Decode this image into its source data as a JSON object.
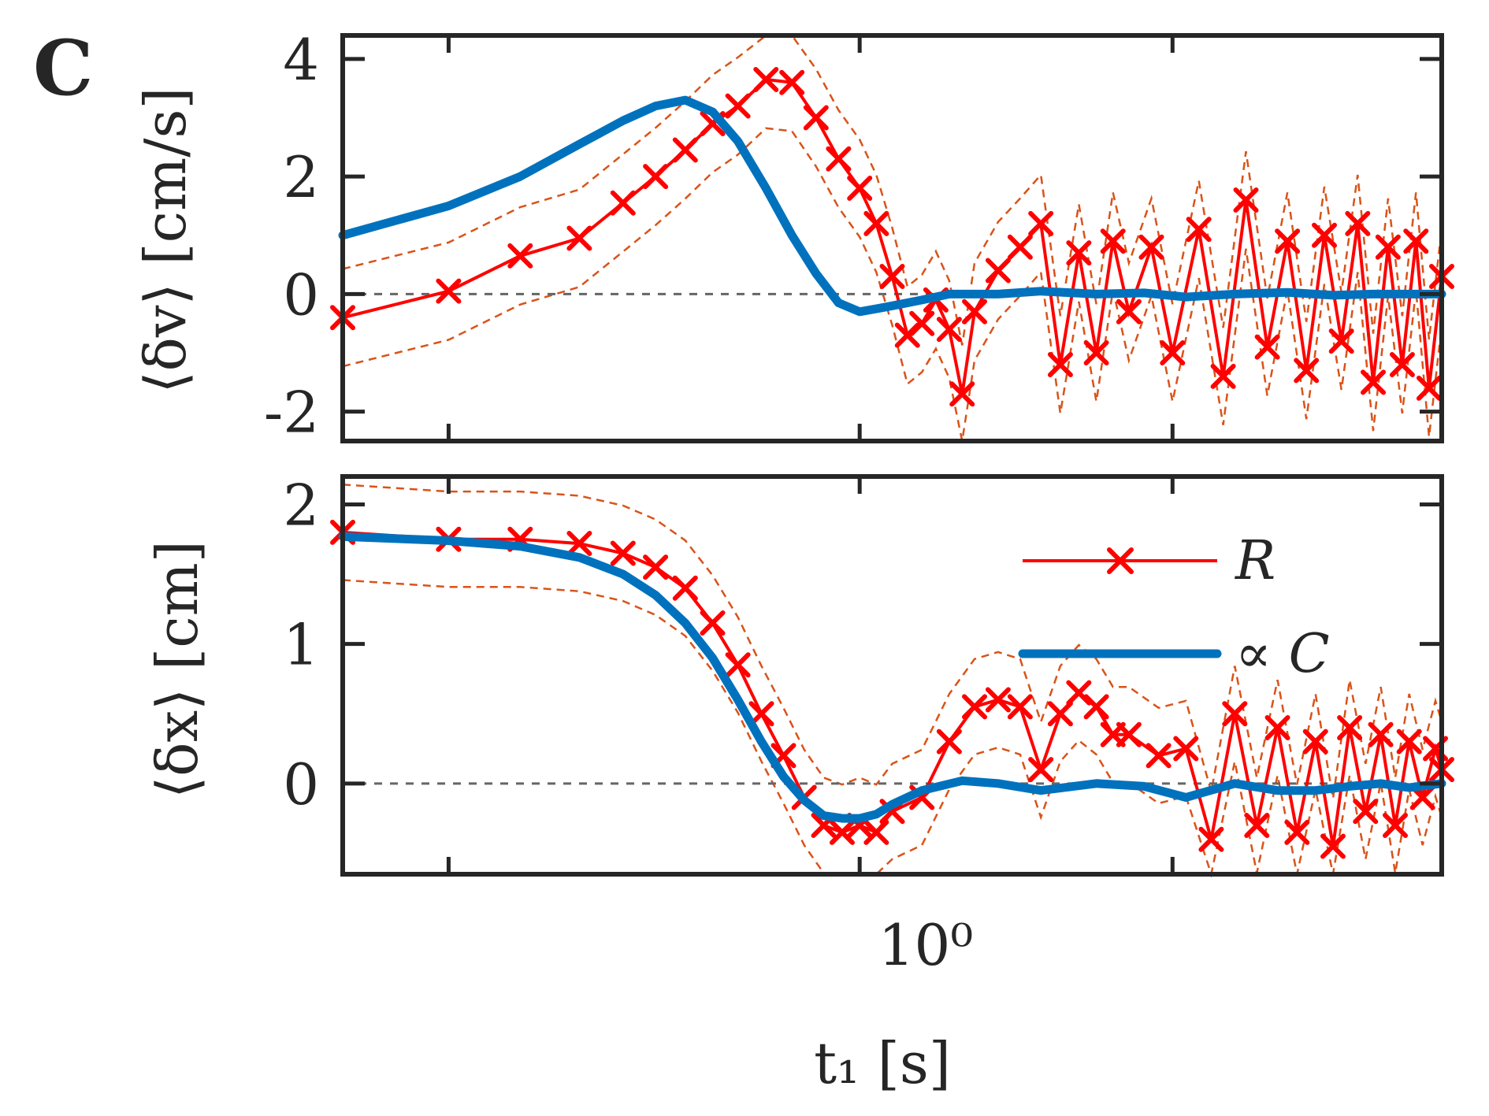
{
  "panel_label": "C",
  "legend": {
    "R": "R",
    "C": "∝ C"
  },
  "colors": {
    "R": "#ff0000",
    "C": "#0072bd",
    "ci": "#d95319",
    "zero": "#666666"
  },
  "chart_data": [
    {
      "type": "line",
      "ylabel": "⟨δv⟩ [cm/s]",
      "xscale": "log",
      "xlim": [
        0.22,
        5.5
      ],
      "ylim": [
        -2.5,
        4.4
      ],
      "yticks": [
        -2,
        0,
        2,
        4
      ],
      "ytick_labels": [
        "-2",
        "0",
        "2",
        "4"
      ],
      "zero_line": true,
      "series": [
        {
          "name": "R",
          "marker": "x",
          "x": [
            0.22,
            0.3,
            0.37,
            0.44,
            0.5,
            0.55,
            0.6,
            0.65,
            0.7,
            0.76,
            0.82,
            0.88,
            0.94,
            1.0,
            1.05,
            1.1,
            1.15,
            1.2,
            1.25,
            1.3,
            1.35,
            1.4,
            1.5,
            1.6,
            1.7,
            1.8,
            1.9,
            2.0,
            2.1,
            2.2,
            2.35,
            2.5,
            2.7,
            2.9,
            3.1,
            3.3,
            3.5,
            3.7,
            3.9,
            4.1,
            4.3,
            4.5,
            4.7,
            4.9,
            5.1,
            5.3,
            5.5
          ],
          "y": [
            -0.4,
            0.05,
            0.65,
            0.95,
            1.55,
            2.0,
            2.45,
            2.9,
            3.2,
            3.65,
            3.6,
            3.0,
            2.3,
            1.8,
            1.2,
            0.3,
            -0.7,
            -0.5,
            -0.1,
            -0.6,
            -1.7,
            -0.3,
            0.4,
            0.8,
            1.2,
            -1.2,
            0.7,
            -1.0,
            0.9,
            -0.3,
            0.8,
            -1.0,
            1.1,
            -1.4,
            1.6,
            -0.9,
            0.9,
            -1.3,
            1.0,
            -0.8,
            1.2,
            -1.5,
            0.8,
            -1.2,
            0.9,
            -1.6,
            0.3
          ]
        },
        {
          "name": "∝ C",
          "x": [
            0.22,
            0.3,
            0.37,
            0.44,
            0.5,
            0.55,
            0.6,
            0.65,
            0.7,
            0.76,
            0.82,
            0.88,
            0.94,
            1.0,
            1.05,
            1.1,
            1.2,
            1.3,
            1.5,
            1.7,
            2.0,
            2.3,
            2.6,
            3.0,
            3.5,
            4.0,
            4.5,
            5.0,
            5.5
          ],
          "y": [
            1.0,
            1.5,
            2.0,
            2.55,
            2.95,
            3.2,
            3.3,
            3.1,
            2.6,
            1.8,
            1.0,
            0.35,
            -0.15,
            -0.3,
            -0.25,
            -0.2,
            -0.1,
            0.0,
            0.0,
            0.05,
            0.0,
            0.02,
            -0.05,
            0.0,
            0.03,
            -0.02,
            0.0,
            0.0,
            0.0
          ]
        }
      ]
    },
    {
      "type": "line",
      "ylabel": "⟨δx⟩ [cm]",
      "xlabel": "t₁ [s]",
      "xscale": "log",
      "xlim": [
        0.22,
        5.5
      ],
      "ylim": [
        -0.65,
        2.2
      ],
      "yticks": [
        0,
        1,
        2
      ],
      "ytick_labels": [
        "0",
        "1",
        "2"
      ],
      "xtick_label": "10⁰",
      "zero_line": true,
      "series": [
        {
          "name": "R",
          "marker": "x",
          "x": [
            0.22,
            0.3,
            0.37,
            0.44,
            0.5,
            0.55,
            0.6,
            0.65,
            0.7,
            0.75,
            0.8,
            0.85,
            0.9,
            0.95,
            1.0,
            1.05,
            1.1,
            1.2,
            1.3,
            1.4,
            1.5,
            1.6,
            1.7,
            1.8,
            1.9,
            2.0,
            2.1,
            2.2,
            2.4,
            2.6,
            2.8,
            3.0,
            3.2,
            3.4,
            3.6,
            3.8,
            4.0,
            4.2,
            4.4,
            4.6,
            4.8,
            5.0,
            5.2,
            5.4,
            5.5
          ],
          "y": [
            1.8,
            1.75,
            1.75,
            1.72,
            1.65,
            1.55,
            1.4,
            1.15,
            0.85,
            0.5,
            0.2,
            -0.1,
            -0.3,
            -0.35,
            -0.3,
            -0.35,
            -0.2,
            -0.1,
            0.3,
            0.55,
            0.6,
            0.55,
            0.1,
            0.5,
            0.65,
            0.55,
            0.35,
            0.35,
            0.2,
            0.25,
            -0.4,
            0.5,
            -0.3,
            0.4,
            -0.35,
            0.3,
            -0.45,
            0.4,
            -0.2,
            0.35,
            -0.3,
            0.3,
            -0.1,
            0.25,
            0.1
          ]
        },
        {
          "name": "∝ C",
          "x": [
            0.22,
            0.3,
            0.37,
            0.44,
            0.5,
            0.55,
            0.6,
            0.65,
            0.7,
            0.75,
            0.8,
            0.85,
            0.9,
            0.95,
            1.0,
            1.05,
            1.1,
            1.2,
            1.35,
            1.5,
            1.7,
            2.0,
            2.3,
            2.6,
            3.0,
            3.4,
            3.8,
            4.2,
            4.6,
            5.0,
            5.5
          ],
          "y": [
            1.77,
            1.74,
            1.7,
            1.62,
            1.5,
            1.35,
            1.15,
            0.9,
            0.6,
            0.3,
            0.05,
            -0.12,
            -0.23,
            -0.25,
            -0.25,
            -0.22,
            -0.15,
            -0.05,
            0.02,
            0.0,
            -0.05,
            0.0,
            -0.02,
            -0.1,
            0.0,
            -0.05,
            -0.05,
            -0.02,
            0.0,
            -0.03,
            0.0
          ]
        }
      ]
    }
  ]
}
